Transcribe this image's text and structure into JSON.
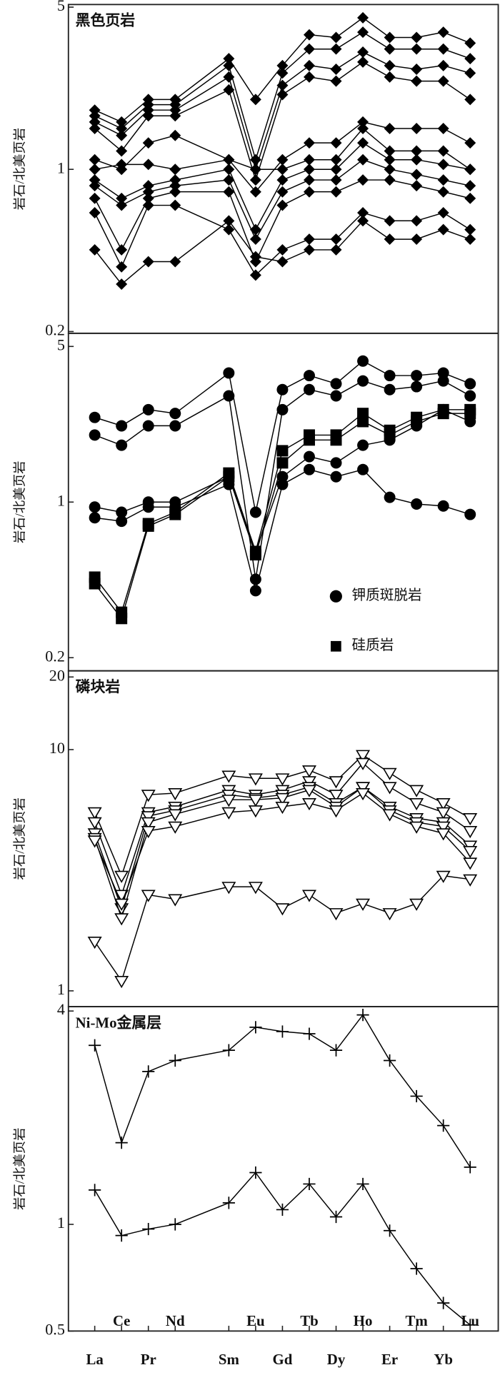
{
  "chart_data": [
    {
      "type": "line",
      "title": "黑色页岩",
      "ylabel": "岩石/北美页岩",
      "log_scale": true,
      "ylim": [
        0.2,
        5
      ],
      "yticks": [
        0.2,
        1,
        5
      ],
      "marker": "diamond",
      "color": "#000000",
      "series": [
        {
          "values": [
            1.8,
            1.6,
            2.0,
            2.0,
            3.0,
            2.0,
            2.8,
            3.8,
            3.7,
            4.5,
            3.7,
            3.7,
            3.9,
            3.5
          ]
        },
        {
          "values": [
            1.7,
            1.5,
            1.9,
            1.9,
            2.8,
            1.1,
            2.6,
            3.3,
            3.3,
            3.9,
            3.3,
            3.3,
            3.3,
            3.0
          ]
        },
        {
          "values": [
            1.6,
            1.4,
            1.8,
            1.8,
            2.5,
            1.0,
            2.3,
            2.8,
            2.7,
            3.2,
            2.8,
            2.7,
            2.8,
            2.6
          ]
        },
        {
          "values": [
            1.5,
            1.2,
            1.7,
            1.7,
            2.2,
            0.9,
            2.1,
            2.5,
            2.4,
            2.9,
            2.5,
            2.4,
            2.4,
            2.0
          ]
        },
        {
          "values": [
            1.1,
            1.0,
            1.3,
            1.4,
            1.1,
            0.8,
            1.1,
            1.3,
            1.3,
            1.6,
            1.5,
            1.5,
            1.5,
            1.3
          ]
        },
        {
          "values": [
            1.0,
            1.05,
            1.05,
            1.0,
            1.1,
            1.0,
            1.0,
            1.1,
            1.1,
            1.5,
            1.2,
            1.2,
            1.2,
            1.0
          ]
        },
        {
          "values": [
            0.9,
            0.75,
            0.85,
            0.9,
            1.0,
            0.55,
            0.9,
            1.0,
            1.0,
            1.3,
            1.1,
            1.1,
            1.05,
            1.0
          ]
        },
        {
          "values": [
            0.85,
            0.7,
            0.8,
            0.85,
            0.9,
            0.5,
            0.8,
            0.9,
            0.9,
            1.1,
            1.0,
            0.95,
            0.9,
            0.85
          ]
        },
        {
          "values": [
            0.75,
            0.45,
            0.75,
            0.8,
            0.8,
            0.4,
            0.7,
            0.8,
            0.8,
            0.9,
            0.9,
            0.85,
            0.8,
            0.75
          ]
        },
        {
          "values": [
            0.65,
            0.38,
            0.7,
            0.7,
            0.55,
            0.35,
            0.45,
            0.5,
            0.5,
            0.65,
            0.6,
            0.6,
            0.65,
            0.55
          ]
        },
        {
          "values": [
            0.45,
            0.32,
            0.4,
            0.4,
            0.6,
            0.42,
            0.4,
            0.45,
            0.45,
            0.6,
            0.5,
            0.5,
            0.55,
            0.5
          ]
        }
      ]
    },
    {
      "type": "line",
      "ylabel": "岩石/北美页岩",
      "log_scale": true,
      "ylim": [
        0.2,
        5
      ],
      "yticks": [
        0.2,
        1,
        5
      ],
      "legend": "lower right",
      "color": "#000000",
      "series": [
        {
          "name": "钾质斑脱岩",
          "marker": "circle",
          "values": [
            2.4,
            2.2,
            2.6,
            2.5,
            3.8,
            0.9,
            3.2,
            3.7,
            3.4,
            4.3,
            3.7,
            3.7,
            3.8,
            3.4
          ]
        },
        {
          "name": "钾质斑脱岩",
          "marker": "circle",
          "values": [
            2.0,
            1.8,
            2.2,
            2.2,
            3.0,
            0.45,
            2.6,
            3.2,
            3.0,
            3.5,
            3.2,
            3.3,
            3.5,
            3.0
          ]
        },
        {
          "name": "钾质斑脱岩",
          "marker": "circle",
          "values": [
            0.95,
            0.9,
            1.0,
            1.0,
            1.3,
            0.6,
            1.3,
            1.6,
            1.5,
            1.8,
            1.9,
            2.2,
            2.6,
            2.3
          ]
        },
        {
          "name": "钾质斑脱岩",
          "marker": "circle",
          "values": [
            0.85,
            0.82,
            0.95,
            0.95,
            1.2,
            0.4,
            1.2,
            1.4,
            1.3,
            1.4,
            1.05,
            0.98,
            0.96,
            0.88
          ]
        },
        {
          "name": "硅质岩",
          "marker": "square",
          "values": [
            0.46,
            0.32,
            0.8,
            0.9,
            1.35,
            0.6,
            1.7,
            2.0,
            2.0,
            2.5,
            2.1,
            2.4,
            2.6,
            2.6
          ]
        },
        {
          "name": "硅质岩",
          "marker": "square",
          "values": [
            0.43,
            0.3,
            0.78,
            0.88,
            1.3,
            0.58,
            1.5,
            1.9,
            1.9,
            2.3,
            2.0,
            2.3,
            2.5,
            2.5
          ]
        }
      ]
    },
    {
      "type": "line",
      "title": "磷块岩",
      "ylabel": "岩石/北美页岩",
      "log_scale": true,
      "ylim": [
        1,
        20
      ],
      "yticks": [
        1,
        10,
        20
      ],
      "marker": "triangle-down",
      "color": "#000000",
      "series": [
        {
          "values": [
            5.5,
            3.0,
            6.5,
            6.6,
            7.8,
            7.6,
            7.6,
            8.2,
            7.4,
            9.5,
            8.0,
            6.8,
            6.0,
            5.2
          ]
        },
        {
          "values": [
            5.0,
            2.5,
            5.5,
            5.8,
            6.8,
            6.5,
            6.8,
            7.4,
            6.5,
            8.8,
            7.0,
            6.0,
            5.5,
            4.6
          ]
        },
        {
          "values": [
            4.5,
            2.2,
            5.3,
            5.6,
            6.5,
            6.3,
            6.5,
            7.0,
            6.0,
            7.0,
            5.8,
            5.2,
            5.0,
            4.0
          ]
        },
        {
          "values": [
            4.3,
            2.0,
            5.0,
            5.4,
            6.2,
            6.2,
            6.3,
            6.8,
            5.8,
            7.0,
            5.6,
            5.0,
            4.8,
            3.8
          ]
        },
        {
          "values": [
            4.2,
            2.3,
            4.6,
            4.8,
            5.5,
            5.6,
            5.8,
            6.0,
            5.6,
            6.6,
            5.4,
            4.8,
            4.5,
            3.4
          ]
        },
        {
          "values": [
            1.6,
            1.1,
            2.5,
            2.4,
            2.7,
            2.7,
            2.2,
            2.5,
            2.1,
            2.3,
            2.1,
            2.3,
            3.0,
            2.9
          ]
        }
      ]
    },
    {
      "type": "line",
      "title": "Ni-Mo金属层",
      "ylabel": "岩石/北美页岩",
      "log_scale": true,
      "ylim": [
        0.5,
        4
      ],
      "yticks": [
        0.5,
        1,
        4
      ],
      "marker": "plus",
      "color": "#000000",
      "categories": [
        "La",
        "Ce",
        "Pr",
        "Nd",
        "Sm",
        "Eu",
        "Gd",
        "Tb",
        "Dy",
        "Ho",
        "Er",
        "Tm",
        "Yb",
        "Lu"
      ],
      "series": [
        {
          "values": [
            3.2,
            1.7,
            2.7,
            2.9,
            3.1,
            3.6,
            3.5,
            3.45,
            3.1,
            3.9,
            2.9,
            2.3,
            1.9,
            1.45
          ]
        },
        {
          "values": [
            1.25,
            0.93,
            0.97,
            1.0,
            1.15,
            1.4,
            1.1,
            1.3,
            1.05,
            1.3,
            0.96,
            0.75,
            0.6,
            0.52
          ]
        }
      ]
    }
  ]
}
